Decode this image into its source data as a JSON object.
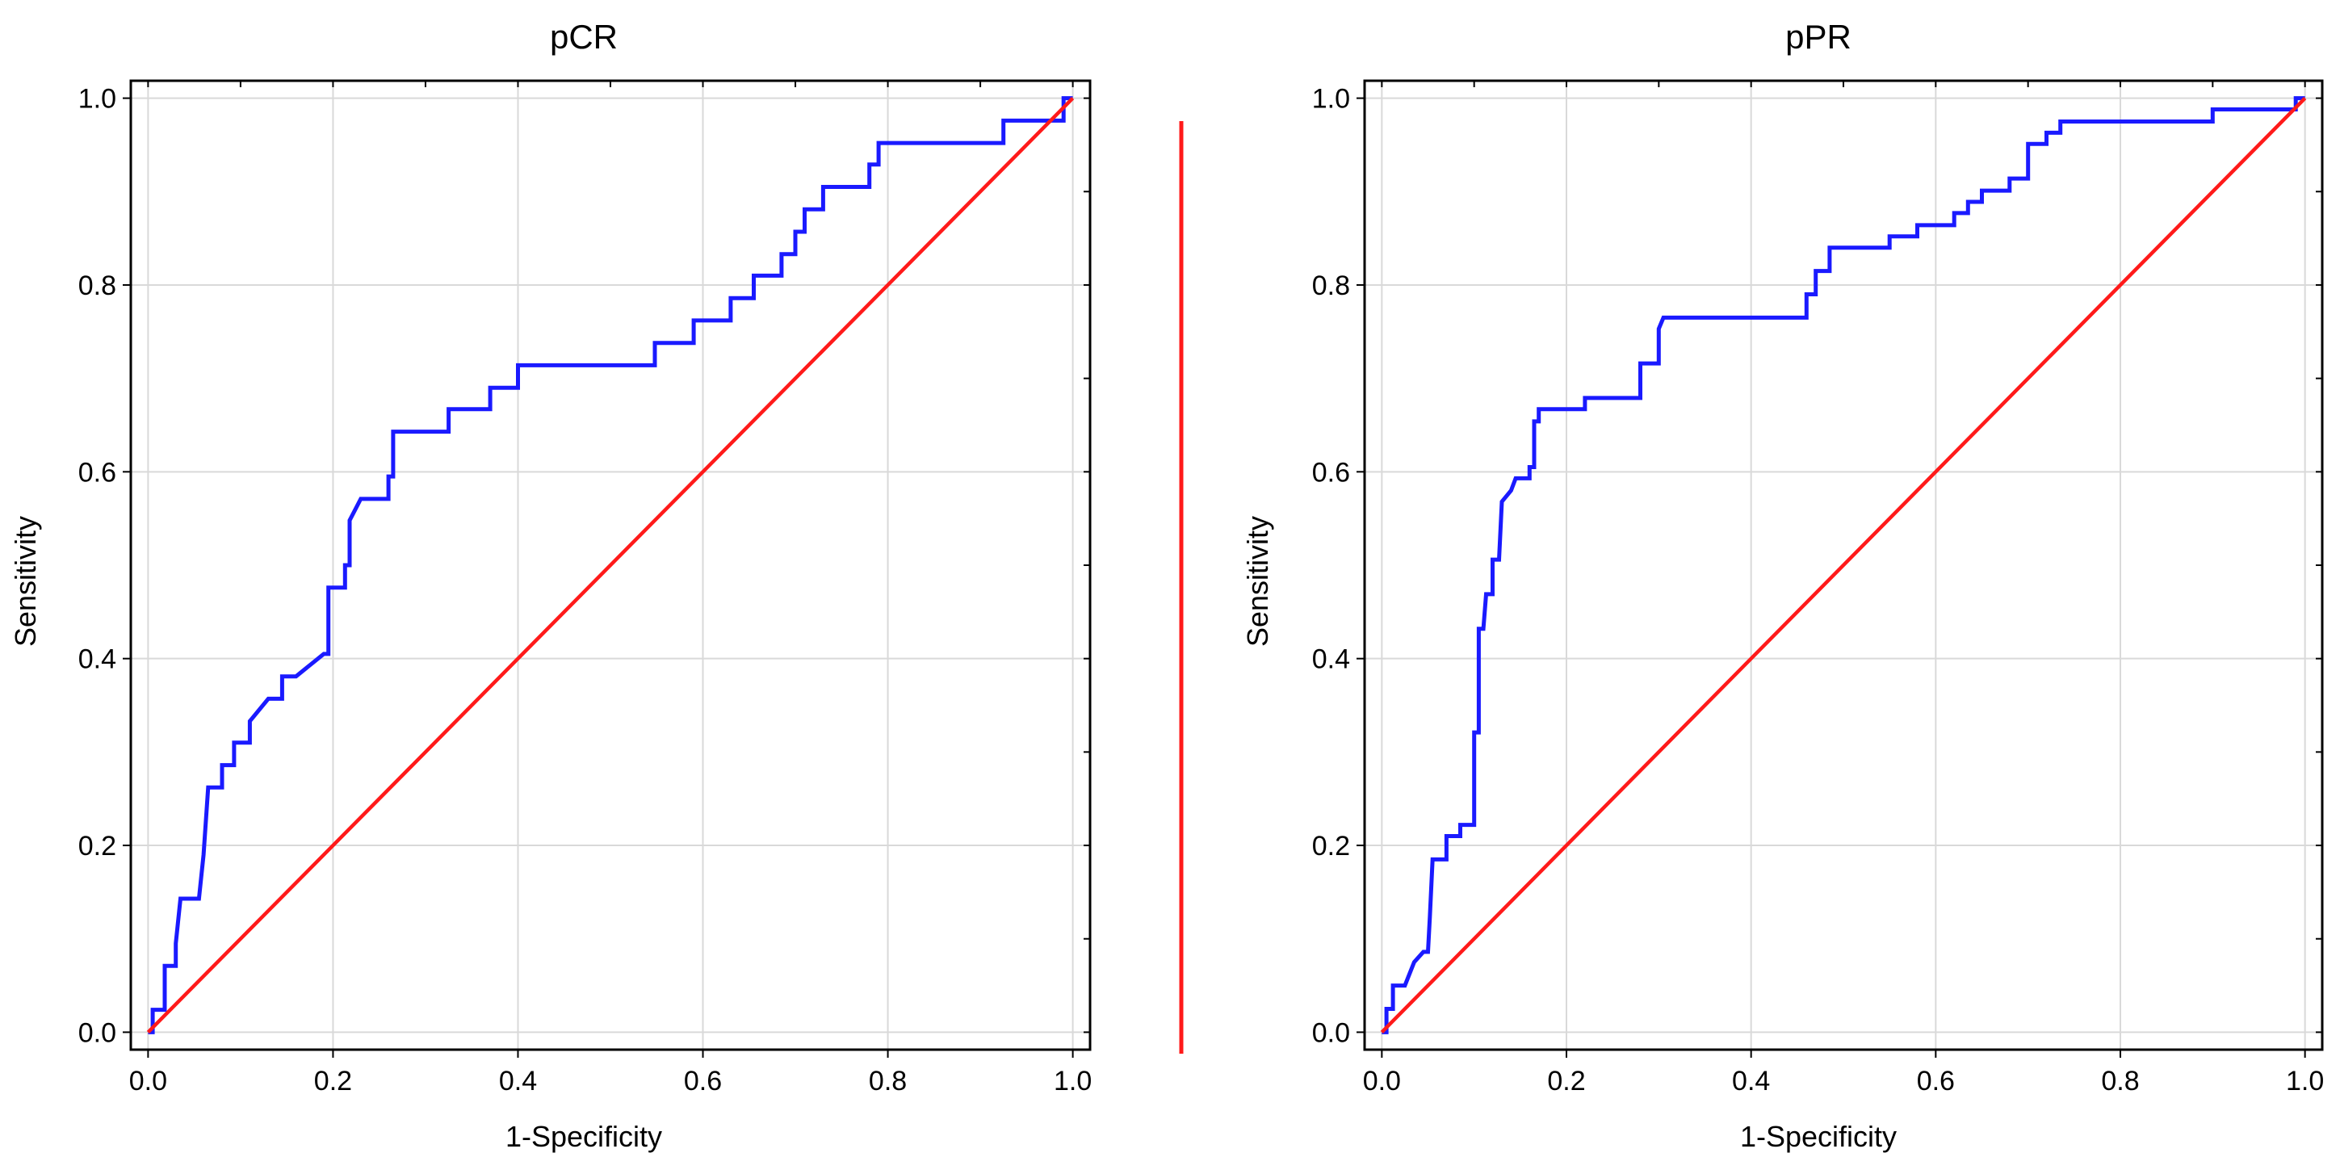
{
  "colors": {
    "roc": "#1a1aff",
    "reference": "#ff1a1a",
    "divider": "#ff1a1a",
    "grid": "#d9d9d9",
    "frame": "#000000"
  },
  "chart_data": [
    {
      "type": "line",
      "title": "pCR",
      "xlabel": "1-Specificity",
      "ylabel": "Sensitivity",
      "xlim": [
        0,
        1
      ],
      "ylim": [
        0,
        1
      ],
      "grid": true,
      "x_ticks": [
        "0.0",
        "0.2",
        "0.4",
        "0.6",
        "0.8",
        "1.0"
      ],
      "y_ticks": [
        "0.0",
        "0.2",
        "0.4",
        "0.6",
        "0.8",
        "1.0"
      ],
      "series": [
        {
          "role": "roc",
          "points": [
            [
              0,
              0
            ],
            [
              0.005,
              0
            ],
            [
              0.005,
              0.024
            ],
            [
              0.018,
              0.024
            ],
            [
              0.018,
              0.071
            ],
            [
              0.03,
              0.071
            ],
            [
              0.03,
              0.095
            ],
            [
              0.035,
              0.143
            ],
            [
              0.055,
              0.143
            ],
            [
              0.06,
              0.19
            ],
            [
              0.065,
              0.262
            ],
            [
              0.08,
              0.262
            ],
            [
              0.08,
              0.286
            ],
            [
              0.093,
              0.286
            ],
            [
              0.093,
              0.31
            ],
            [
              0.11,
              0.31
            ],
            [
              0.11,
              0.333
            ],
            [
              0.13,
              0.357
            ],
            [
              0.145,
              0.357
            ],
            [
              0.145,
              0.381
            ],
            [
              0.16,
              0.381
            ],
            [
              0.19,
              0.405
            ],
            [
              0.195,
              0.405
            ],
            [
              0.195,
              0.476
            ],
            [
              0.213,
              0.476
            ],
            [
              0.213,
              0.5
            ],
            [
              0.218,
              0.5
            ],
            [
              0.218,
              0.548
            ],
            [
              0.23,
              0.571
            ],
            [
              0.26,
              0.571
            ],
            [
              0.26,
              0.595
            ],
            [
              0.265,
              0.595
            ],
            [
              0.265,
              0.643
            ],
            [
              0.325,
              0.643
            ],
            [
              0.325,
              0.667
            ],
            [
              0.37,
              0.667
            ],
            [
              0.37,
              0.69
            ],
            [
              0.4,
              0.69
            ],
            [
              0.4,
              0.714
            ],
            [
              0.548,
              0.714
            ],
            [
              0.548,
              0.738
            ],
            [
              0.59,
              0.738
            ],
            [
              0.59,
              0.762
            ],
            [
              0.63,
              0.762
            ],
            [
              0.63,
              0.786
            ],
            [
              0.655,
              0.786
            ],
            [
              0.655,
              0.81
            ],
            [
              0.685,
              0.81
            ],
            [
              0.685,
              0.833
            ],
            [
              0.7,
              0.833
            ],
            [
              0.7,
              0.857
            ],
            [
              0.71,
              0.857
            ],
            [
              0.71,
              0.881
            ],
            [
              0.73,
              0.881
            ],
            [
              0.73,
              0.905
            ],
            [
              0.78,
              0.905
            ],
            [
              0.78,
              0.929
            ],
            [
              0.79,
              0.929
            ],
            [
              0.79,
              0.952
            ],
            [
              0.925,
              0.952
            ],
            [
              0.925,
              0.976
            ],
            [
              0.99,
              0.976
            ],
            [
              0.99,
              1.0
            ],
            [
              1.0,
              1.0
            ]
          ]
        },
        {
          "role": "reference",
          "points": [
            [
              0,
              0
            ],
            [
              1,
              1
            ]
          ]
        }
      ]
    },
    {
      "type": "line",
      "title": "pPR",
      "xlabel": "1-Specificity",
      "ylabel": "Sensitivity",
      "xlim": [
        0,
        1
      ],
      "ylim": [
        0,
        1
      ],
      "grid": true,
      "x_ticks": [
        "0.0",
        "0.2",
        "0.4",
        "0.6",
        "0.8",
        "1.0"
      ],
      "y_ticks": [
        "0.0",
        "0.2",
        "0.4",
        "0.6",
        "0.8",
        "1.0"
      ],
      "series": [
        {
          "role": "roc",
          "points": [
            [
              0,
              0
            ],
            [
              0.005,
              0
            ],
            [
              0.005,
              0.025
            ],
            [
              0.012,
              0.025
            ],
            [
              0.012,
              0.05
            ],
            [
              0.025,
              0.05
            ],
            [
              0.035,
              0.075
            ],
            [
              0.045,
              0.086
            ],
            [
              0.05,
              0.086
            ],
            [
              0.052,
              0.123
            ],
            [
              0.055,
              0.185
            ],
            [
              0.07,
              0.185
            ],
            [
              0.07,
              0.21
            ],
            [
              0.085,
              0.21
            ],
            [
              0.085,
              0.222
            ],
            [
              0.1,
              0.222
            ],
            [
              0.1,
              0.321
            ],
            [
              0.105,
              0.321
            ],
            [
              0.105,
              0.432
            ],
            [
              0.11,
              0.432
            ],
            [
              0.113,
              0.469
            ],
            [
              0.12,
              0.469
            ],
            [
              0.12,
              0.506
            ],
            [
              0.127,
              0.506
            ],
            [
              0.13,
              0.568
            ],
            [
              0.14,
              0.58
            ],
            [
              0.145,
              0.593
            ],
            [
              0.16,
              0.593
            ],
            [
              0.16,
              0.605
            ],
            [
              0.165,
              0.605
            ],
            [
              0.165,
              0.654
            ],
            [
              0.17,
              0.654
            ],
            [
              0.17,
              0.667
            ],
            [
              0.22,
              0.667
            ],
            [
              0.22,
              0.679
            ],
            [
              0.28,
              0.679
            ],
            [
              0.28,
              0.716
            ],
            [
              0.3,
              0.716
            ],
            [
              0.3,
              0.753
            ],
            [
              0.305,
              0.765
            ],
            [
              0.46,
              0.765
            ],
            [
              0.46,
              0.79
            ],
            [
              0.47,
              0.79
            ],
            [
              0.47,
              0.815
            ],
            [
              0.485,
              0.815
            ],
            [
              0.485,
              0.84
            ],
            [
              0.55,
              0.84
            ],
            [
              0.55,
              0.852
            ],
            [
              0.58,
              0.852
            ],
            [
              0.58,
              0.864
            ],
            [
              0.62,
              0.864
            ],
            [
              0.62,
              0.877
            ],
            [
              0.635,
              0.877
            ],
            [
              0.635,
              0.889
            ],
            [
              0.65,
              0.889
            ],
            [
              0.65,
              0.901
            ],
            [
              0.68,
              0.901
            ],
            [
              0.68,
              0.914
            ],
            [
              0.7,
              0.914
            ],
            [
              0.7,
              0.951
            ],
            [
              0.72,
              0.951
            ],
            [
              0.72,
              0.963
            ],
            [
              0.735,
              0.963
            ],
            [
              0.735,
              0.975
            ],
            [
              0.9,
              0.975
            ],
            [
              0.9,
              0.988
            ],
            [
              0.99,
              0.988
            ],
            [
              0.99,
              1.0
            ],
            [
              1.0,
              1.0
            ]
          ]
        },
        {
          "role": "reference",
          "points": [
            [
              0,
              0
            ],
            [
              1,
              1
            ]
          ]
        }
      ]
    }
  ]
}
